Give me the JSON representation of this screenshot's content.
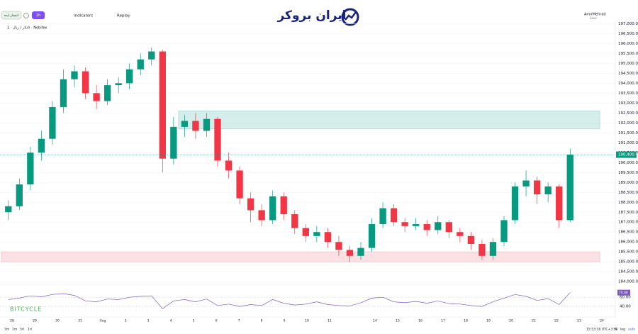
{
  "toolbar": {
    "search": "انتشار ایده",
    "interval": "1h",
    "indicators": "Indicators",
    "replay": "Replay",
    "user": "AmirMehrad",
    "save": "Save"
  },
  "logo": "ایران بروکر",
  "watermark": "BITCYCLE",
  "chart_data": {
    "type": "candlestick",
    "title": "دلار / ریال · 1h · Nobitex",
    "x_axis_labels": [
      "28",
      "29",
      "30",
      "31",
      "Aug",
      "2",
      "3",
      "4",
      "5",
      "6",
      "7",
      "8",
      "9",
      "10",
      "11",
      null,
      "14",
      "15",
      "16",
      "17",
      "18",
      "19",
      "20",
      "21",
      "22",
      "23",
      "24"
    ],
    "open": [
      187500,
      187800,
      188900,
      190500,
      191200,
      192800,
      194200,
      194600,
      193500,
      193100,
      193900,
      194000,
      194700,
      195200,
      195600,
      190200,
      191800,
      192100,
      191600,
      192200,
      190100,
      189600,
      188200,
      187600,
      187100,
      188300,
      187400,
      186700,
      186300,
      186500,
      186000,
      185600,
      185300,
      185700,
      186900,
      187700,
      187000,
      186800,
      186900,
      186600,
      187000,
      186500,
      186300,
      185900,
      185300,
      186000,
      187100,
      188800,
      189100,
      188400,
      188800,
      187100
    ],
    "high": [
      188100,
      189200,
      190800,
      191600,
      193100,
      194700,
      194900,
      194800,
      193900,
      194200,
      194300,
      195000,
      195500,
      195800,
      195700,
      192300,
      192400,
      192500,
      192500,
      192300,
      190500,
      189800,
      188500,
      187900,
      188600,
      188500,
      187600,
      186900,
      186800,
      186700,
      186300,
      185800,
      186000,
      187200,
      188000,
      187900,
      187200,
      187200,
      187100,
      187300,
      187100,
      186700,
      186500,
      186100,
      186200,
      187300,
      189000,
      189600,
      189300,
      189000,
      188900,
      190700
    ],
    "low": [
      187100,
      187600,
      188600,
      190100,
      190900,
      192500,
      193800,
      193200,
      192700,
      192900,
      193500,
      193700,
      194400,
      194900,
      189500,
      189900,
      191300,
      191200,
      191300,
      189800,
      189200,
      187900,
      187000,
      186800,
      186900,
      187100,
      186400,
      186000,
      186000,
      185700,
      185300,
      185000,
      185100,
      185500,
      186700,
      186800,
      186500,
      186600,
      186300,
      186400,
      186200,
      186000,
      185600,
      185100,
      185100,
      185800,
      186900,
      188300,
      187900,
      188000,
      186700,
      187000
    ],
    "close": [
      187800,
      188900,
      190500,
      191200,
      192800,
      194200,
      194600,
      193500,
      193100,
      193900,
      194000,
      194700,
      195200,
      195600,
      190200,
      191800,
      192100,
      191600,
      192200,
      190100,
      189600,
      188200,
      187600,
      187100,
      188300,
      187400,
      186700,
      186300,
      186500,
      186000,
      185600,
      185300,
      185700,
      186900,
      187700,
      187000,
      186800,
      186900,
      186600,
      187000,
      186500,
      186300,
      185900,
      185300,
      186000,
      187100,
      188800,
      189100,
      188400,
      188800,
      187100,
      190400
    ],
    "up_color": "#089981",
    "down_color": "#f23645",
    "ylim": [
      183900,
      197550
    ],
    "yticks": [
      {
        "value": 184000,
        "label": "184,000.00"
      },
      {
        "value": 184500,
        "label": "184,500.00"
      },
      {
        "value": 185000,
        "label": "185,000.00"
      },
      {
        "value": 185500,
        "label": "185,500.00"
      },
      {
        "value": 186000,
        "label": "186,000.00"
      },
      {
        "value": 186500,
        "label": "186,500.00"
      },
      {
        "value": 187000,
        "label": "187,000.00"
      },
      {
        "value": 187500,
        "label": "187,500.00"
      },
      {
        "value": 188000,
        "label": "188,000.00"
      },
      {
        "value": 188500,
        "label": "188,500.00"
      },
      {
        "value": 189000,
        "label": "189,000.00"
      },
      {
        "value": 189500,
        "label": "189,500.00"
      },
      {
        "value": 190000,
        "label": "190,000.00"
      },
      {
        "value": 190500,
        "label": "190,500.00"
      },
      {
        "value": 191000,
        "label": "191,000.00"
      },
      {
        "value": 191500,
        "label": "191,500.00"
      },
      {
        "value": 192000,
        "label": "192,000.00"
      },
      {
        "value": 192500,
        "label": "192,500.00"
      },
      {
        "value": 193000,
        "label": "193,000.00"
      },
      {
        "value": 193500,
        "label": "193,500.00"
      },
      {
        "value": 194000,
        "label": "194,000.00"
      },
      {
        "value": 194500,
        "label": "194,500.00"
      },
      {
        "value": 195000,
        "label": "195,000.00"
      },
      {
        "value": 195500,
        "label": "195,500.00"
      },
      {
        "value": 196000,
        "label": "196,000.00"
      },
      {
        "value": 196500,
        "label": "196,500.00"
      },
      {
        "value": 197000,
        "label": "197,000.00"
      }
    ],
    "zones": [
      {
        "low": 191700,
        "high": 192600,
        "color": "#b2dfdb"
      },
      {
        "low": 185000,
        "high": 185500,
        "color": "#f8c8cc"
      }
    ],
    "last_price": {
      "value": 190400,
      "label": "190,400.00"
    },
    "rsi": {
      "values": [
        55,
        58,
        63,
        61,
        66,
        68,
        64,
        52,
        50,
        56,
        55,
        60,
        62,
        63,
        35,
        52,
        55,
        50,
        56,
        42,
        45,
        40,
        44,
        42,
        55,
        47,
        43,
        45,
        50,
        44,
        42,
        41,
        48,
        58,
        60,
        50,
        48,
        51,
        47,
        52,
        46,
        45,
        42,
        40,
        50,
        58,
        66,
        62,
        53,
        57,
        44,
        70.06
      ],
      "ylim": [
        20,
        85
      ],
      "yticks": [
        {
          "value": 60,
          "label": "60.00"
        },
        {
          "value": 40,
          "label": "40.00"
        }
      ],
      "last": {
        "value": 70.06,
        "label": "70.06"
      },
      "color": "#7e57c2"
    }
  },
  "footer": {
    "ranges": [
      "3m",
      "1m",
      "5d",
      "1d"
    ],
    "time": "15:53:18 UTC+3:30",
    "percent": "%",
    "log": "log",
    "auto": "auto"
  }
}
